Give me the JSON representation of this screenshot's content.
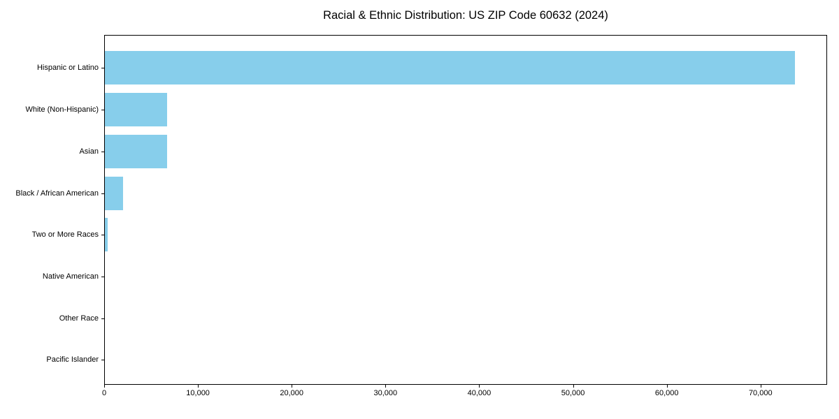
{
  "title": "Racial & Ethnic Distribution: US ZIP Code 60632 (2024)",
  "chart_data": {
    "type": "bar",
    "orientation": "horizontal",
    "title": "Racial & Ethnic Distribution: US ZIP Code 60632 (2024)",
    "xlabel": "",
    "ylabel": "",
    "categories": [
      "Hispanic or Latino",
      "White (Non-Hispanic)",
      "Asian",
      "Black / African American",
      "Two or More Races",
      "Native American",
      "Other Race",
      "Pacific Islander"
    ],
    "values": [
      73600,
      6650,
      6600,
      1950,
      330,
      0,
      0,
      0
    ],
    "xlim": [
      0,
      77100
    ],
    "xticks": [
      0,
      10000,
      20000,
      30000,
      40000,
      50000,
      60000,
      70000
    ],
    "xtick_labels": [
      "0",
      "10,000",
      "20,000",
      "30,000",
      "40,000",
      "50,000",
      "60,000",
      "70,000"
    ],
    "bar_color": "#87CEEB",
    "axis_color": "#000000",
    "grid": false,
    "legend": null
  }
}
